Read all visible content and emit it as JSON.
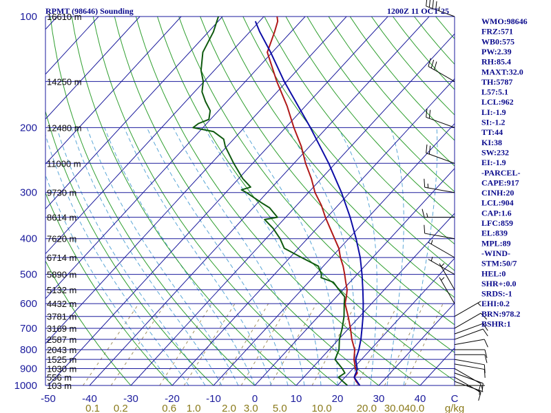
{
  "header": {
    "title": "RPMT (98646) Sounding",
    "time": "1200Z 11 OCT 25"
  },
  "colors": {
    "frame": "#1a1a9c",
    "isotherm": "#1a1a9c",
    "dry_adiabat": "#2e9e2e",
    "moist_adiabat": "#5aa6d6",
    "mixing_ratio": "#a09060",
    "temperature": "#b01818",
    "dewpoint": "#0e5a0e",
    "parcel": "#0c0ca6",
    "wind_barb": "#000000"
  },
  "chart_data": {
    "type": "skew-t log-p",
    "pressure_axis": {
      "unit": "mb",
      "ylim": [
        1000,
        100
      ],
      "scale": "log",
      "tick_labels": [
        "100",
        "200",
        "300",
        "400",
        "500",
        "600",
        "700",
        "800",
        "900",
        "1000"
      ]
    },
    "temperature_axis": {
      "unit": "°C",
      "tick_labels": [
        "-50",
        "-40",
        "-30",
        "-20",
        "-10",
        "0",
        "10",
        "20",
        "30",
        "40",
        "C"
      ]
    },
    "mixing_ratio_axis": {
      "unit": "g/kg",
      "tick_labels": [
        "0.1",
        "0.2",
        "0.6",
        "1.0",
        "2.0",
        "3.0",
        "5.0",
        "10.0",
        "20.0",
        "30.0",
        "40.0",
        "g/kg"
      ]
    },
    "mixing_ratio_values": [
      0.1,
      0.2,
      0.6,
      1.0,
      2.0,
      3.0,
      5.0,
      10.0,
      20.0,
      30.0,
      40.0
    ],
    "height_labels": [
      {
        "p": 100,
        "label": "16610 m"
      },
      {
        "p": 150,
        "label": "14250 m"
      },
      {
        "p": 200,
        "label": "12480 m"
      },
      {
        "p": 250,
        "label": "11000 m"
      },
      {
        "p": 300,
        "label": "9730 m"
      },
      {
        "p": 350,
        "label": "8614 m"
      },
      {
        "p": 400,
        "label": "7620 m"
      },
      {
        "p": 450,
        "label": "6714 m"
      },
      {
        "p": 500,
        "label": "5890 m"
      },
      {
        "p": 550,
        "label": "5132 m"
      },
      {
        "p": 600,
        "label": "4432 m"
      },
      {
        "p": 650,
        "label": "3781 m"
      },
      {
        "p": 700,
        "label": "3169 m"
      },
      {
        "p": 750,
        "label": "2587 m"
      },
      {
        "p": 800,
        "label": "2043 m"
      },
      {
        "p": 850,
        "label": "1525 m"
      },
      {
        "p": 900,
        "label": "1030 m"
      },
      {
        "p": 950,
        "label": "556 m"
      },
      {
        "p": 1000,
        "label": "103 m"
      }
    ],
    "series": [
      {
        "name": "temperature",
        "points": [
          [
            1000,
            25.4
          ],
          [
            975,
            23.6
          ],
          [
            950,
            22.2
          ],
          [
            925,
            22.0
          ],
          [
            900,
            20.6
          ],
          [
            850,
            18.2
          ],
          [
            800,
            16.2
          ],
          [
            750,
            13.2
          ],
          [
            700,
            10.4
          ],
          [
            650,
            7.2
          ],
          [
            600,
            3.6
          ],
          [
            575,
            2.4
          ],
          [
            550,
            1.0
          ],
          [
            525,
            -1.0
          ],
          [
            500,
            -3.0
          ],
          [
            475,
            -5.2
          ],
          [
            450,
            -7.8
          ],
          [
            425,
            -10.2
          ],
          [
            400,
            -13.4
          ],
          [
            375,
            -16.8
          ],
          [
            350,
            -20.4
          ],
          [
            325,
            -24.0
          ],
          [
            300,
            -28.4
          ],
          [
            275,
            -32.4
          ],
          [
            250,
            -37.2
          ],
          [
            225,
            -42.0
          ],
          [
            200,
            -48.0
          ],
          [
            175,
            -54.4
          ],
          [
            150,
            -62.4
          ],
          [
            125,
            -71.2
          ],
          [
            110,
            -74.0
          ],
          [
            103,
            -75.6
          ],
          [
            100,
            -76.8
          ]
        ]
      },
      {
        "name": "dewpoint",
        "points": [
          [
            1000,
            22.4
          ],
          [
            975,
            20.4
          ],
          [
            950,
            18.4
          ],
          [
            925,
            19.0
          ],
          [
            900,
            17.4
          ],
          [
            850,
            13.6
          ],
          [
            800,
            12.4
          ],
          [
            750,
            10.2
          ],
          [
            700,
            8.4
          ],
          [
            650,
            6.2
          ],
          [
            600,
            3.4
          ],
          [
            575,
            2.0
          ],
          [
            550,
            -1.0
          ],
          [
            525,
            -4.0
          ],
          [
            510,
            -8.0
          ],
          [
            500,
            -8.6
          ],
          [
            475,
            -11.2
          ],
          [
            450,
            -17.2
          ],
          [
            425,
            -23.4
          ],
          [
            400,
            -26.6
          ],
          [
            375,
            -30.6
          ],
          [
            355,
            -34.6
          ],
          [
            350,
            -32.0
          ],
          [
            330,
            -36.0
          ],
          [
            320,
            -39.0
          ],
          [
            300,
            -45.0
          ],
          [
            295,
            -46.8
          ],
          [
            290,
            -45.2
          ],
          [
            275,
            -49.0
          ],
          [
            250,
            -54.6
          ],
          [
            225,
            -60.4
          ],
          [
            215,
            -62.4
          ],
          [
            205,
            -66.6
          ],
          [
            200,
            -72.4
          ],
          [
            195,
            -72.0
          ],
          [
            190,
            -70.4
          ],
          [
            180,
            -72.0
          ],
          [
            170,
            -75.2
          ],
          [
            160,
            -78.2
          ],
          [
            150,
            -80.2
          ],
          [
            140,
            -83.2
          ],
          [
            125,
            -86.8
          ],
          [
            110,
            -88.8
          ],
          [
            100,
            -91.0
          ]
        ]
      },
      {
        "name": "parcel",
        "points": [
          [
            1000,
            25.4
          ],
          [
            950,
            22.2
          ],
          [
            904,
            21.2
          ],
          [
            850,
            18.6
          ],
          [
            800,
            17.2
          ],
          [
            750,
            15.4
          ],
          [
            700,
            13.2
          ],
          [
            650,
            10.8
          ],
          [
            600,
            8.0
          ],
          [
            550,
            4.8
          ],
          [
            500,
            1.2
          ],
          [
            450,
            -3.0
          ],
          [
            400,
            -8.2
          ],
          [
            350,
            -14.4
          ],
          [
            300,
            -22.0
          ],
          [
            250,
            -31.6
          ],
          [
            200,
            -44.0
          ],
          [
            150,
            -60.6
          ],
          [
            125,
            -70.4
          ],
          [
            110,
            -77.6
          ],
          [
            103,
            -81.0
          ]
        ]
      }
    ],
    "wind_barbs": [
      {
        "p": 1000,
        "dir": 90,
        "kt": 5
      },
      {
        "p": 975,
        "dir": 110,
        "kt": 5
      },
      {
        "p": 950,
        "dir": 120,
        "kt": 10
      },
      {
        "p": 925,
        "dir": 110,
        "kt": 10
      },
      {
        "p": 900,
        "dir": 120,
        "kt": 10
      },
      {
        "p": 875,
        "dir": 100,
        "kt": 10
      },
      {
        "p": 850,
        "dir": 100,
        "kt": 10
      },
      {
        "p": 825,
        "dir": 90,
        "kt": 10
      },
      {
        "p": 800,
        "dir": 90,
        "kt": 10
      },
      {
        "p": 775,
        "dir": 80,
        "kt": 10
      },
      {
        "p": 750,
        "dir": 70,
        "kt": 10
      },
      {
        "p": 725,
        "dir": 70,
        "kt": 10
      },
      {
        "p": 700,
        "dir": 60,
        "kt": 10
      },
      {
        "p": 650,
        "dir": 60,
        "kt": 5
      },
      {
        "p": 600,
        "dir": 330,
        "kt": 5
      },
      {
        "p": 550,
        "dir": 330,
        "kt": 5
      },
      {
        "p": 500,
        "dir": 300,
        "kt": 5
      },
      {
        "p": 450,
        "dir": 300,
        "kt": 5
      },
      {
        "p": 400,
        "dir": 280,
        "kt": 10
      },
      {
        "p": 350,
        "dir": 270,
        "kt": 15
      },
      {
        "p": 300,
        "dir": 280,
        "kt": 15
      },
      {
        "p": 250,
        "dir": 290,
        "kt": 20
      },
      {
        "p": 200,
        "dir": 290,
        "kt": 20
      },
      {
        "p": 150,
        "dir": 300,
        "kt": 30
      },
      {
        "p": 100,
        "dir": 290,
        "kt": 45
      }
    ]
  },
  "indices": [
    "WMO:98646",
    "FRZ:571",
    "WB0:575",
    "PW:2.39",
    "RH:85.4",
    "MAXT:32.0",
    "TH:5787",
    "L57:5.1",
    "LCL:962",
    "LI:-1.9",
    "SI:-1.2",
    "TT:44",
    "KI:38",
    "SW:232",
    "EI:-1.9",
    "-PARCEL-",
    "CAPE:917",
    "CINH:20",
    "LCL:904",
    "CAP:1.6",
    "LFC:859",
    "EL:839",
    "MPL:89",
    "-WIND-",
    "STM:50/7",
    "HEL:0",
    "SHR+:0.0",
    "SRDS:-1",
    "EHI:0.2",
    "BRN:978.2",
    "BSHR:1"
  ]
}
